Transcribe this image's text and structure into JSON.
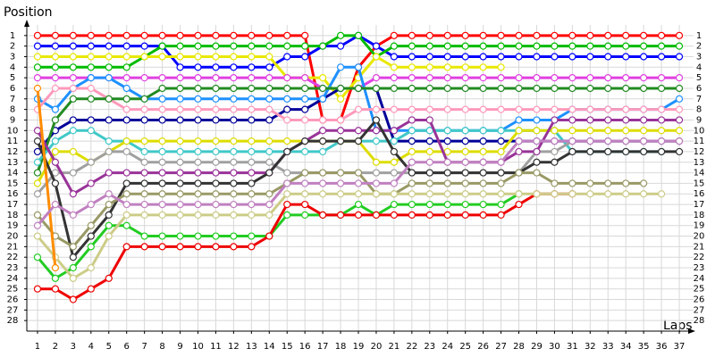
{
  "chart_data": {
    "type": "line",
    "y_label": "Position",
    "x_label": "Laps",
    "inverted_y": true,
    "grid": true,
    "x": [
      1,
      2,
      3,
      4,
      5,
      6,
      7,
      8,
      9,
      10,
      11,
      12,
      13,
      14,
      15,
      16,
      17,
      18,
      19,
      20,
      21,
      22,
      23,
      24,
      25,
      26,
      27,
      28,
      29,
      30,
      31,
      32,
      33,
      34,
      35,
      36,
      37
    ],
    "xlim": [
      0.4,
      37.8
    ],
    "xticks": [
      1,
      2,
      3,
      4,
      5,
      6,
      7,
      8,
      9,
      10,
      11,
      12,
      13,
      14,
      15,
      16,
      17,
      18,
      19,
      20,
      21,
      22,
      23,
      24,
      25,
      26,
      27,
      28,
      29,
      30,
      31,
      32,
      33,
      34,
      35,
      36,
      37
    ],
    "ylim": [
      29,
      0
    ],
    "yticks": [
      1,
      2,
      3,
      4,
      5,
      6,
      7,
      8,
      9,
      10,
      11,
      12,
      13,
      14,
      15,
      16,
      17,
      18,
      19,
      20,
      21,
      22,
      23,
      24,
      25,
      26,
      27,
      28
    ],
    "series": [
      {
        "color": "#ff0000",
        "values": [
          1,
          1,
          1,
          1,
          1,
          1,
          1,
          1,
          1,
          1,
          1,
          1,
          1,
          1,
          1,
          1,
          9,
          9,
          4,
          2,
          1,
          1,
          1,
          1,
          1,
          1,
          1,
          1,
          1,
          1,
          1,
          1,
          1,
          1,
          1,
          1,
          1
        ]
      },
      {
        "color": "#0000ff",
        "values": [
          2,
          2,
          2,
          2,
          2,
          2,
          2,
          2,
          4,
          4,
          4,
          4,
          4,
          4,
          3,
          3,
          2,
          2,
          1,
          2,
          3,
          3,
          3,
          3,
          3,
          3,
          3,
          3,
          3,
          3,
          3,
          3,
          3,
          3,
          3,
          3,
          3
        ]
      },
      {
        "color": "#00bb00",
        "values": [
          4,
          4,
          4,
          4,
          4,
          4,
          3,
          2,
          2,
          2,
          2,
          2,
          2,
          2,
          2,
          2,
          2,
          1,
          1,
          3,
          2,
          2,
          2,
          2,
          2,
          2,
          2,
          2,
          2,
          2,
          2,
          2,
          2,
          2,
          2,
          2,
          2
        ]
      },
      {
        "color": "#e8e800",
        "values": [
          3,
          3,
          3,
          3,
          3,
          3,
          3,
          3,
          3,
          3,
          3,
          3,
          3,
          3,
          5,
          5,
          5,
          7,
          5,
          3,
          4,
          4,
          4,
          4,
          4,
          4,
          4,
          null,
          null,
          null,
          null,
          null,
          null,
          null,
          null,
          null,
          null
        ]
      },
      {
        "color": "#e040e0",
        "values": [
          5,
          5,
          5,
          5,
          5,
          5,
          5,
          5,
          5,
          5,
          5,
          5,
          5,
          5,
          5,
          5,
          6,
          6,
          6,
          5,
          5,
          5,
          5,
          5,
          5,
          5,
          5,
          5,
          5,
          5,
          5,
          5,
          5,
          5,
          5,
          5,
          5
        ]
      },
      {
        "color": "#000099",
        "values": [
          12,
          10,
          9,
          9,
          9,
          9,
          9,
          9,
          9,
          9,
          9,
          9,
          9,
          9,
          8,
          8,
          7,
          6,
          6,
          6,
          11,
          11,
          11,
          11,
          11,
          11,
          11,
          11,
          11,
          11,
          11,
          11,
          11,
          11,
          11,
          11,
          11
        ]
      },
      {
        "color": "#1e90ff",
        "values": [
          7,
          8,
          6,
          5,
          5,
          6,
          7,
          7,
          7,
          7,
          7,
          7,
          7,
          7,
          7,
          7,
          7,
          4,
          4,
          10,
          10,
          10,
          10,
          10,
          10,
          10,
          10,
          9,
          9,
          9,
          8,
          8,
          8,
          8,
          8,
          8,
          7
        ]
      },
      {
        "color": "#ff99bb",
        "values": [
          8,
          6,
          6,
          6,
          7,
          8,
          8,
          8,
          8,
          8,
          8,
          8,
          8,
          8,
          9,
          9,
          9,
          9,
          8,
          8,
          8,
          8,
          8,
          8,
          8,
          8,
          8,
          8,
          8,
          8,
          8,
          8,
          8,
          8,
          8,
          8,
          8
        ]
      },
      {
        "color": "#228b22",
        "values": [
          14,
          9,
          7,
          7,
          7,
          7,
          7,
          6,
          6,
          6,
          6,
          6,
          6,
          6,
          6,
          6,
          6,
          6,
          6,
          6,
          6,
          6,
          6,
          6,
          6,
          6,
          6,
          6,
          6,
          6,
          6,
          6,
          6,
          6,
          6,
          6,
          6
        ]
      },
      {
        "color": "#40c8c8",
        "values": [
          13,
          11,
          10,
          10,
          11,
          11,
          12,
          12,
          12,
          12,
          12,
          12,
          12,
          12,
          12,
          12,
          12,
          11,
          11,
          11,
          11,
          10,
          10,
          10,
          10,
          10,
          10,
          10,
          10,
          10,
          12,
          12,
          12,
          12,
          12,
          12,
          null
        ]
      },
      {
        "color": "#dddd00",
        "values": [
          15,
          12,
          12,
          13,
          12,
          11,
          11,
          11,
          11,
          11,
          11,
          11,
          11,
          11,
          11,
          11,
          11,
          11,
          11,
          13,
          13,
          12,
          12,
          12,
          12,
          12,
          12,
          10,
          10,
          10,
          10,
          10,
          10,
          10,
          10,
          10,
          10
        ]
      },
      {
        "color": "#a0a0a0",
        "values": [
          16,
          14,
          14,
          13,
          12,
          12,
          13,
          13,
          13,
          13,
          13,
          13,
          13,
          13,
          14,
          14,
          14,
          14,
          14,
          14,
          14,
          14,
          14,
          14,
          14,
          14,
          14,
          14,
          12,
          12,
          11,
          11,
          11,
          11,
          11,
          11,
          11
        ]
      },
      {
        "color": "#993399",
        "values": [
          10,
          13,
          16,
          15,
          14,
          14,
          14,
          14,
          14,
          14,
          14,
          14,
          14,
          14,
          12,
          11,
          10,
          10,
          10,
          10,
          10,
          9,
          9,
          13,
          13,
          13,
          13,
          12,
          12,
          9,
          9,
          9,
          9,
          9,
          9,
          9,
          9
        ]
      },
      {
        "color": "#333333",
        "values": [
          11,
          15,
          22,
          20,
          18,
          15,
          15,
          15,
          15,
          15,
          15,
          15,
          15,
          14,
          12,
          11,
          11,
          11,
          11,
          9,
          12,
          14,
          14,
          14,
          14,
          14,
          14,
          14,
          13,
          13,
          12,
          12,
          12,
          12,
          12,
          12,
          12
        ]
      },
      {
        "color": "#999966",
        "values": [
          18,
          20,
          21,
          19,
          17,
          16,
          16,
          16,
          16,
          16,
          16,
          16,
          16,
          16,
          15,
          14,
          14,
          14,
          14,
          16,
          16,
          15,
          15,
          15,
          15,
          15,
          15,
          14,
          14,
          15,
          15,
          15,
          15,
          15,
          15,
          null,
          null
        ]
      },
      {
        "color": "#22cc22",
        "values": [
          22,
          24,
          23,
          21,
          19,
          19,
          20,
          20,
          20,
          20,
          20,
          20,
          20,
          20,
          18,
          18,
          18,
          18,
          17,
          18,
          17,
          17,
          17,
          17,
          17,
          17,
          17,
          16,
          null,
          null,
          null,
          null,
          null,
          null,
          null,
          null,
          null
        ]
      },
      {
        "color": "#ee0000",
        "values": [
          25,
          25,
          26,
          25,
          24,
          21,
          21,
          21,
          21,
          21,
          21,
          21,
          21,
          20,
          17,
          17,
          18,
          18,
          18,
          18,
          18,
          18,
          18,
          18,
          18,
          18,
          18,
          17,
          16,
          16,
          16,
          null,
          null,
          null,
          null,
          null,
          null
        ]
      },
      {
        "color": "#cccc88",
        "values": [
          20,
          22,
          24,
          23,
          20,
          18,
          18,
          18,
          18,
          18,
          18,
          18,
          18,
          18,
          16,
          16,
          16,
          16,
          16,
          16,
          16,
          16,
          16,
          16,
          16,
          16,
          16,
          16,
          16,
          16,
          16,
          16,
          16,
          16,
          16,
          16,
          null
        ]
      },
      {
        "color": "#ff8c00",
        "values": [
          6,
          23,
          null,
          null,
          null,
          null,
          null,
          null,
          null,
          null,
          null,
          null,
          null,
          null,
          null,
          null,
          null,
          null,
          null,
          null,
          null,
          null,
          null,
          null,
          null,
          null,
          null,
          null,
          null,
          null,
          null,
          null,
          null,
          null,
          null,
          null,
          null
        ]
      },
      {
        "color": "#c080c0",
        "values": [
          19,
          17,
          18,
          17,
          16,
          17,
          17,
          17,
          17,
          17,
          17,
          17,
          17,
          17,
          15,
          15,
          15,
          15,
          15,
          15,
          15,
          13,
          13,
          13,
          13,
          13,
          13,
          11,
          11,
          11,
          11,
          11,
          11,
          11,
          11,
          11,
          11
        ]
      }
    ]
  }
}
